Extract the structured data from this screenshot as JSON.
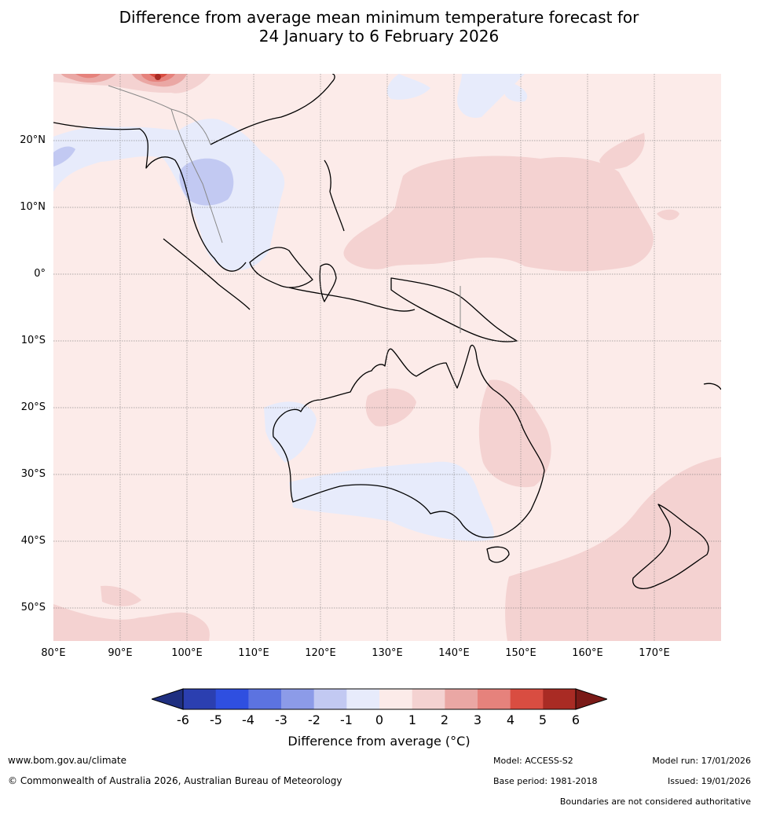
{
  "title": {
    "line1": "Difference from average mean minimum temperature forecast for",
    "line2": "24 January to 6 February 2026"
  },
  "map": {
    "lat_labels": [
      "20°N",
      "10°N",
      "0°",
      "10°S",
      "20°S",
      "30°S",
      "40°S",
      "50°S"
    ],
    "lon_labels": [
      "80°E",
      "90°E",
      "100°E",
      "110°E",
      "120°E",
      "130°E",
      "140°E",
      "150°E",
      "160°E",
      "170°E"
    ]
  },
  "legend": {
    "ticks": [
      "-6",
      "-5",
      "-4",
      "-3",
      "-2",
      "-1",
      "0",
      "1",
      "2",
      "3",
      "4",
      "5",
      "6"
    ],
    "colors": [
      "#2b3fb0",
      "#2f4fe0",
      "#5c73e0",
      "#8c9be8",
      "#c2c9f2",
      "#e7ebfb",
      "#fcebe9",
      "#f4d2d1",
      "#eaa7a4",
      "#e6827c",
      "#d94d41",
      "#a92b24"
    ],
    "under_color": "#1f2f80",
    "over_color": "#7a1a17",
    "label": "Difference from average (°C)"
  },
  "footer": {
    "website": "www.bom.gov.au/climate",
    "copyright": "© Commonwealth of Australia 2026, Australian Bureau of Meteorology",
    "model": "Model: ACCESS-S2",
    "base_period": "Base period: 1981-2018",
    "model_run": "Model run: 17/01/2026",
    "issued": "Issued: 19/01/2026",
    "disclaimer": "Boundaries are not considered authoritative"
  }
}
